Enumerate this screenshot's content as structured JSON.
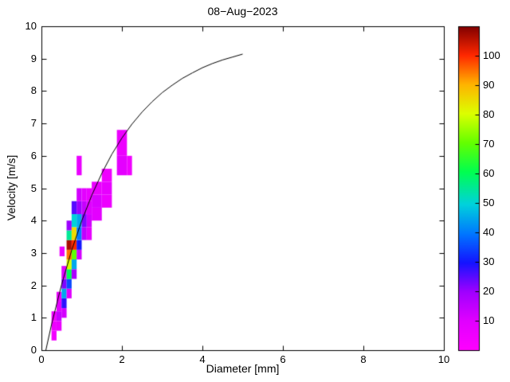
{
  "chart_data": {
    "type": "heatmap",
    "title": "08−Aug−2023",
    "xlabel": "Diameter [mm]",
    "ylabel": "Velocity [m/s]",
    "xlim": [
      0,
      10
    ],
    "ylim": [
      0,
      10
    ],
    "grid": false,
    "background": "#ffffff",
    "axis_color": "#000000",
    "x_ticks": [
      0,
      2,
      4,
      6,
      8,
      10
    ],
    "y_ticks": [
      0,
      1,
      2,
      3,
      4,
      5,
      6,
      7,
      8,
      9,
      10
    ],
    "colorbar": {
      "position": "right",
      "vmin": 0,
      "vmax": 110,
      "ticks": [
        10,
        20,
        30,
        40,
        50,
        60,
        70,
        80,
        90,
        100
      ],
      "stops": [
        {
          "t": 0.0,
          "color": "#FF00FF"
        },
        {
          "t": 0.09,
          "color": "#E100FF"
        },
        {
          "t": 0.18,
          "color": "#A000FF"
        },
        {
          "t": 0.27,
          "color": "#1414FF"
        },
        {
          "t": 0.36,
          "color": "#0078FF"
        },
        {
          "t": 0.45,
          "color": "#00D2DC"
        },
        {
          "t": 0.55,
          "color": "#00FF50"
        },
        {
          "t": 0.64,
          "color": "#64FF00"
        },
        {
          "t": 0.73,
          "color": "#DCFF00"
        },
        {
          "t": 0.82,
          "color": "#FFB400"
        },
        {
          "t": 0.91,
          "color": "#FF2800"
        },
        {
          "t": 1.0,
          "color": "#800000"
        }
      ]
    },
    "cells_format": [
      "d_min_mm",
      "d_max_mm",
      "v_min_ms",
      "v_max_ms",
      "count"
    ],
    "cells": [
      [
        0.25,
        0.375,
        0.3,
        0.6,
        4
      ],
      [
        0.25,
        0.375,
        0.6,
        0.9,
        6
      ],
      [
        0.25,
        0.375,
        0.9,
        1.2,
        5
      ],
      [
        0.375,
        0.5,
        0.6,
        0.9,
        7
      ],
      [
        0.375,
        0.5,
        0.9,
        1.2,
        14
      ],
      [
        0.375,
        0.5,
        1.2,
        1.5,
        9
      ],
      [
        0.375,
        0.5,
        1.5,
        1.8,
        6
      ],
      [
        0.5,
        0.625,
        1.0,
        1.3,
        12
      ],
      [
        0.5,
        0.625,
        1.3,
        1.6,
        28
      ],
      [
        0.5,
        0.625,
        1.6,
        1.9,
        45
      ],
      [
        0.5,
        0.625,
        1.9,
        2.2,
        22
      ],
      [
        0.5,
        0.625,
        2.2,
        2.6,
        10
      ],
      [
        0.45,
        0.575,
        2.9,
        3.2,
        6
      ],
      [
        0.625,
        0.75,
        1.6,
        1.9,
        10
      ],
      [
        0.625,
        0.75,
        1.9,
        2.2,
        35
      ],
      [
        0.625,
        0.75,
        2.2,
        2.5,
        60
      ],
      [
        0.625,
        0.75,
        2.5,
        2.8,
        80
      ],
      [
        0.625,
        0.75,
        2.8,
        3.1,
        95
      ],
      [
        0.625,
        0.75,
        3.1,
        3.4,
        107
      ],
      [
        0.625,
        0.75,
        3.4,
        3.7,
        55
      ],
      [
        0.625,
        0.75,
        3.7,
        4.0,
        20
      ],
      [
        0.75,
        0.875,
        2.2,
        2.5,
        18
      ],
      [
        0.75,
        0.875,
        2.5,
        2.8,
        45
      ],
      [
        0.75,
        0.875,
        2.8,
        3.1,
        70
      ],
      [
        0.75,
        0.875,
        3.1,
        3.4,
        100
      ],
      [
        0.75,
        0.875,
        3.4,
        3.8,
        85
      ],
      [
        0.75,
        0.875,
        3.8,
        4.2,
        50
      ],
      [
        0.75,
        0.875,
        4.2,
        4.6,
        25
      ],
      [
        0.875,
        1.0,
        2.8,
        3.1,
        12
      ],
      [
        0.875,
        1.0,
        3.1,
        3.4,
        30
      ],
      [
        0.875,
        1.0,
        3.4,
        3.8,
        40
      ],
      [
        0.875,
        1.0,
        3.8,
        4.2,
        45
      ],
      [
        0.875,
        1.0,
        4.2,
        4.6,
        20
      ],
      [
        0.875,
        1.0,
        4.6,
        5.0,
        12
      ],
      [
        0.875,
        1.0,
        5.4,
        6.0,
        7
      ],
      [
        1.0,
        1.125,
        3.4,
        3.8,
        15
      ],
      [
        1.0,
        1.125,
        3.8,
        4.2,
        22
      ],
      [
        1.0,
        1.125,
        4.2,
        4.6,
        14
      ],
      [
        1.0,
        1.125,
        4.6,
        5.0,
        9
      ],
      [
        1.125,
        1.25,
        3.4,
        3.8,
        8
      ],
      [
        1.125,
        1.25,
        3.8,
        4.2,
        12
      ],
      [
        1.125,
        1.25,
        4.2,
        4.6,
        10
      ],
      [
        1.125,
        1.25,
        4.6,
        5.0,
        7
      ],
      [
        1.25,
        1.5,
        4.0,
        4.4,
        9
      ],
      [
        1.25,
        1.5,
        4.4,
        4.8,
        11
      ],
      [
        1.25,
        1.5,
        4.8,
        5.2,
        7
      ],
      [
        1.5,
        1.75,
        4.4,
        4.8,
        6
      ],
      [
        1.5,
        1.75,
        4.8,
        5.2,
        8
      ],
      [
        1.5,
        1.75,
        5.2,
        5.6,
        5
      ],
      [
        1.875,
        2.125,
        5.4,
        6.0,
        9
      ],
      [
        1.875,
        2.125,
        6.0,
        6.8,
        6
      ],
      [
        2.125,
        2.25,
        5.4,
        6.0,
        5
      ]
    ],
    "curve": {
      "name": "terminal-velocity-curve",
      "color": "#000000",
      "points": [
        [
          0.11,
          0.0
        ],
        [
          0.25,
          0.79
        ],
        [
          0.5,
          2.02
        ],
        [
          0.75,
          3.08
        ],
        [
          1.0,
          3.99
        ],
        [
          1.25,
          4.78
        ],
        [
          1.5,
          5.46
        ],
        [
          1.75,
          6.05
        ],
        [
          2.0,
          6.55
        ],
        [
          2.25,
          6.98
        ],
        [
          2.5,
          7.35
        ],
        [
          2.75,
          7.67
        ],
        [
          3.0,
          7.95
        ],
        [
          3.25,
          8.18
        ],
        [
          3.5,
          8.39
        ],
        [
          3.75,
          8.56
        ],
        [
          4.0,
          8.72
        ],
        [
          4.25,
          8.85
        ],
        [
          4.5,
          8.96
        ],
        [
          4.75,
          9.05
        ],
        [
          5.0,
          9.14
        ]
      ]
    }
  }
}
